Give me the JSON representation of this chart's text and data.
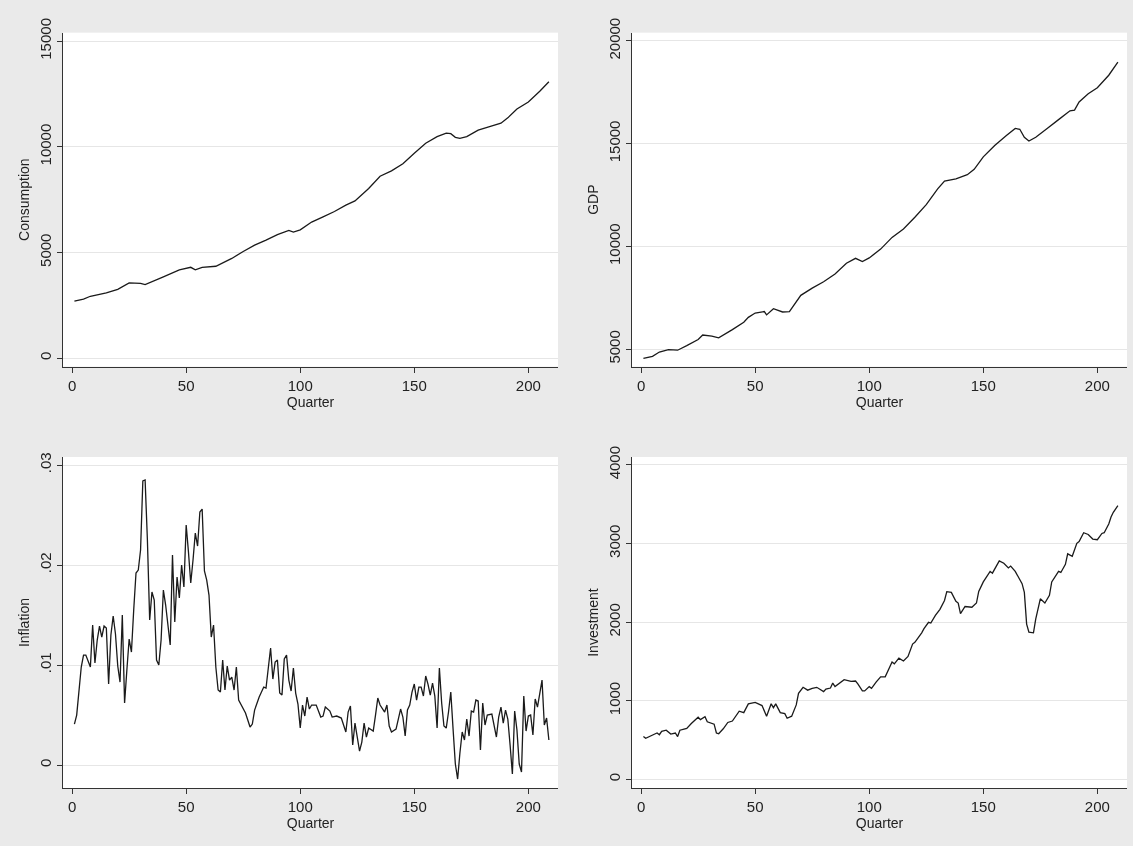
{
  "chart_data": [
    {
      "type": "line",
      "xlabel": "Quarter",
      "ylabel": "Consumption",
      "grid": "y",
      "xlim": [
        -4,
        213
      ],
      "xticks": [
        0,
        50,
        100,
        150,
        200
      ],
      "ylim": [
        -400,
        15400
      ],
      "yticks": [
        0,
        5000,
        10000,
        15000
      ],
      "series": [
        {
          "color": "#1a1a1a",
          "x": [
            1,
            5,
            8,
            15,
            20,
            25,
            30,
            32,
            40,
            47,
            52,
            54,
            57,
            63,
            70,
            75,
            80,
            85,
            90,
            95,
            97,
            100,
            105,
            110,
            115,
            120,
            124,
            130,
            135,
            140,
            145,
            150,
            155,
            160,
            164,
            166,
            168,
            170,
            173,
            178,
            183,
            188,
            191,
            195,
            200,
            205,
            209
          ],
          "values": [
            2700,
            2800,
            2930,
            3090,
            3260,
            3560,
            3540,
            3480,
            3850,
            4180,
            4300,
            4180,
            4300,
            4350,
            4720,
            5050,
            5350,
            5590,
            5850,
            6050,
            5970,
            6070,
            6440,
            6690,
            6940,
            7240,
            7440,
            8030,
            8610,
            8860,
            9200,
            9700,
            10170,
            10480,
            10650,
            10620,
            10450,
            10400,
            10480,
            10790,
            10950,
            11120,
            11370,
            11790,
            12120,
            12630,
            13080
          ]
        }
      ]
    },
    {
      "type": "line",
      "xlabel": "Quarter",
      "ylabel": "GDP",
      "grid": "y",
      "xlim": [
        -4,
        213
      ],
      "xticks": [
        0,
        50,
        100,
        150,
        200
      ],
      "ylim": [
        4150,
        20400
      ],
      "yticks": [
        5000,
        10000,
        15000,
        20000
      ],
      "series": [
        {
          "color": "#1a1a1a",
          "x": [
            1,
            5,
            8,
            12,
            16,
            20,
            25,
            27,
            31,
            34,
            40,
            45,
            47,
            50,
            54,
            55,
            58,
            62,
            65,
            70,
            75,
            80,
            85,
            90,
            94,
            97,
            100,
            105,
            110,
            115,
            120,
            125,
            130,
            133,
            138,
            143,
            146,
            150,
            155,
            160,
            164,
            166,
            168,
            170,
            173,
            178,
            183,
            188,
            190,
            192,
            196,
            200,
            205,
            209
          ],
          "values": [
            4550,
            4650,
            4860,
            4980,
            4950,
            5170,
            5470,
            5690,
            5640,
            5550,
            5950,
            6310,
            6550,
            6760,
            6830,
            6670,
            6970,
            6810,
            6830,
            7620,
            7970,
            8280,
            8660,
            9180,
            9420,
            9260,
            9440,
            9870,
            10440,
            10850,
            11420,
            12030,
            12800,
            13180,
            13290,
            13490,
            13750,
            14360,
            14910,
            15390,
            15740,
            15700,
            15310,
            15130,
            15310,
            15740,
            16170,
            16600,
            16630,
            17030,
            17430,
            17720,
            18330,
            18970
          ]
        }
      ]
    },
    {
      "type": "line",
      "xlabel": "Quarter",
      "ylabel": "Inflation",
      "grid": "y",
      "xlim": [
        -4,
        213
      ],
      "xticks": [
        0,
        50,
        100,
        150,
        200
      ],
      "ylim": [
        -0.0023,
        0.0308
      ],
      "yticks": [
        0,
        {
          "value": 0.01,
          "label": ".01"
        },
        {
          "value": 0.02,
          "label": ".02"
        },
        {
          "value": 0.03,
          "label": ".03"
        }
      ],
      "series": [
        {
          "color": "#1a1a1a",
          "x": [
            1,
            2,
            4,
            5,
            6,
            8,
            9,
            10,
            11,
            12,
            13,
            14,
            15,
            16,
            17,
            18,
            19,
            20,
            21,
            22,
            23,
            24,
            25,
            26,
            27,
            28,
            29,
            30,
            31,
            32,
            33,
            34,
            35,
            36,
            37,
            38,
            39,
            40,
            41,
            43,
            44,
            45,
            46,
            47,
            48,
            49,
            50,
            51,
            52,
            53,
            54,
            55,
            56,
            57,
            58,
            59,
            60,
            61,
            62,
            63,
            64,
            65,
            66,
            67,
            68,
            69,
            70,
            71,
            72,
            73,
            76,
            78,
            79,
            80,
            82,
            84,
            85,
            87,
            88,
            89,
            90,
            91,
            92,
            93,
            94,
            95,
            96,
            97,
            98,
            99,
            100,
            101,
            102,
            103,
            104,
            105,
            107,
            109,
            110,
            111,
            113,
            114,
            116,
            118,
            120,
            121,
            122,
            123,
            124,
            125,
            126,
            127,
            128,
            129,
            130,
            132,
            133,
            134,
            135,
            137,
            138,
            139,
            140,
            142,
            144,
            145,
            146,
            147,
            148,
            149,
            150,
            151,
            152,
            153,
            154,
            155,
            156,
            157,
            158,
            159,
            160,
            161,
            162,
            163,
            164,
            165,
            166,
            167,
            168,
            169,
            170,
            171,
            172,
            173,
            174,
            175,
            176,
            177,
            178,
            179,
            180,
            181,
            182,
            184,
            186,
            187,
            188,
            189,
            190,
            191,
            192,
            193,
            194,
            195,
            196,
            197,
            198,
            199,
            200,
            201,
            202,
            203,
            204,
            206,
            207,
            208,
            209
          ],
          "values": [
            0.0041,
            0.005,
            0.0098,
            0.011,
            0.011,
            0.0098,
            0.014,
            0.0102,
            0.0125,
            0.0139,
            0.0128,
            0.0139,
            0.0137,
            0.0081,
            0.013,
            0.0149,
            0.0131,
            0.0099,
            0.0083,
            0.015,
            0.0062,
            0.0095,
            0.0126,
            0.0113,
            0.0155,
            0.0192,
            0.0195,
            0.0215,
            0.0284,
            0.0285,
            0.0225,
            0.0145,
            0.0173,
            0.0165,
            0.0105,
            0.01,
            0.0125,
            0.0175,
            0.016,
            0.012,
            0.021,
            0.0143,
            0.0188,
            0.0167,
            0.02,
            0.0178,
            0.024,
            0.0213,
            0.0182,
            0.0205,
            0.0232,
            0.0219,
            0.0253,
            0.0256,
            0.0194,
            0.0185,
            0.017,
            0.0128,
            0.014,
            0.0098,
            0.0075,
            0.0073,
            0.0105,
            0.0075,
            0.0099,
            0.0085,
            0.0088,
            0.0075,
            0.0098,
            0.0065,
            0.0052,
            0.0038,
            0.0041,
            0.0055,
            0.0068,
            0.0078,
            0.0077,
            0.0117,
            0.0086,
            0.0103,
            0.0105,
            0.0072,
            0.007,
            0.0106,
            0.011,
            0.0085,
            0.0074,
            0.0097,
            0.0072,
            0.0061,
            0.0037,
            0.006,
            0.0049,
            0.0068,
            0.0056,
            0.006,
            0.006,
            0.0048,
            0.0049,
            0.0058,
            0.0054,
            0.0048,
            0.0049,
            0.0047,
            0.0033,
            0.0053,
            0.0059,
            0.002,
            0.0042,
            0.0028,
            0.0014,
            0.0023,
            0.0042,
            0.0028,
            0.0037,
            0.0034,
            0.005,
            0.0067,
            0.006,
            0.0053,
            0.006,
            0.0039,
            0.0033,
            0.0036,
            0.0056,
            0.0048,
            0.0029,
            0.0055,
            0.006,
            0.0073,
            0.0081,
            0.0065,
            0.0078,
            0.0078,
            0.0069,
            0.0089,
            0.0081,
            0.007,
            0.0082,
            0.0069,
            0.0037,
            0.0097,
            0.0062,
            0.0039,
            0.0037,
            0.0053,
            0.0073,
            0.0036,
            0.0001,
            -0.0014,
            0.0012,
            0.0033,
            0.0025,
            0.0046,
            0.0029,
            0.0054,
            0.0053,
            0.0065,
            0.0064,
            0.0015,
            0.0062,
            0.004,
            0.005,
            0.0051,
            0.0028,
            0.0048,
            0.0058,
            0.0042,
            0.0055,
            0.0046,
            0.002,
            -0.0009,
            0.0054,
            0.0035,
            0.0001,
            -0.0007,
            0.0069,
            0.0034,
            0.0049,
            0.005,
            0.003,
            0.0066,
            0.0058,
            0.0085,
            0.004,
            0.0047,
            0.0025
          ]
        }
      ]
    },
    {
      "type": "line",
      "xlabel": "Quarter",
      "ylabel": "Investment",
      "grid": "y",
      "xlim": [
        -4,
        213
      ],
      "xticks": [
        0,
        50,
        100,
        150,
        200
      ],
      "ylim": [
        -110,
        4100
      ],
      "yticks": [
        0,
        1000,
        2000,
        3000,
        4000
      ],
      "series": [
        {
          "color": "#1a1a1a",
          "x": [
            1,
            2,
            6,
            7,
            8,
            9,
            11,
            13,
            15,
            16,
            17,
            20,
            22,
            25,
            26,
            28,
            29,
            32,
            33,
            34,
            36,
            38,
            40,
            43,
            45,
            47,
            50,
            53,
            55,
            57,
            58,
            59,
            61,
            63,
            64,
            66,
            68,
            69,
            71,
            73,
            75,
            77,
            80,
            81,
            83,
            84,
            85,
            89,
            92,
            94,
            95,
            97,
            98,
            100,
            101,
            103,
            105,
            107,
            110,
            111,
            113,
            115,
            117,
            119,
            120,
            123,
            124,
            126,
            127,
            129,
            131,
            133,
            134,
            136,
            138,
            139,
            140,
            142,
            145,
            147,
            148,
            150,
            153,
            154,
            157,
            159,
            161,
            162,
            164,
            167,
            168,
            169,
            170,
            172,
            173,
            175,
            177,
            179,
            180,
            183,
            184,
            186,
            187,
            189,
            191,
            192,
            194,
            196,
            198,
            200,
            202,
            203,
            205,
            206,
            207,
            209
          ],
          "values": [
            545,
            523,
            577,
            590,
            568,
            612,
            626,
            577,
            590,
            545,
            626,
            648,
            710,
            791,
            760,
            796,
            733,
            702,
            590,
            581,
            644,
            724,
            742,
            867,
            849,
            961,
            979,
            939,
            804,
            961,
            912,
            961,
            849,
            836,
            778,
            804,
            947,
            1095,
            1171,
            1135,
            1158,
            1171,
            1117,
            1149,
            1162,
            1225,
            1180,
            1269,
            1247,
            1251,
            1216,
            1126,
            1126,
            1180,
            1158,
            1238,
            1305,
            1305,
            1493,
            1470,
            1542,
            1506,
            1564,
            1721,
            1743,
            1864,
            1917,
            1998,
            1989,
            2087,
            2163,
            2275,
            2387,
            2378,
            2266,
            2243,
            2109,
            2199,
            2190,
            2243,
            2391,
            2512,
            2646,
            2623,
            2780,
            2749,
            2690,
            2713,
            2646,
            2489,
            2378,
            1975,
            1873,
            1864,
            2042,
            2297,
            2243,
            2342,
            2512,
            2646,
            2632,
            2735,
            2869,
            2838,
            3003,
            3026,
            3137,
            3115,
            3057,
            3048,
            3128,
            3137,
            3249,
            3338,
            3397,
            3481
          ]
        }
      ]
    }
  ]
}
